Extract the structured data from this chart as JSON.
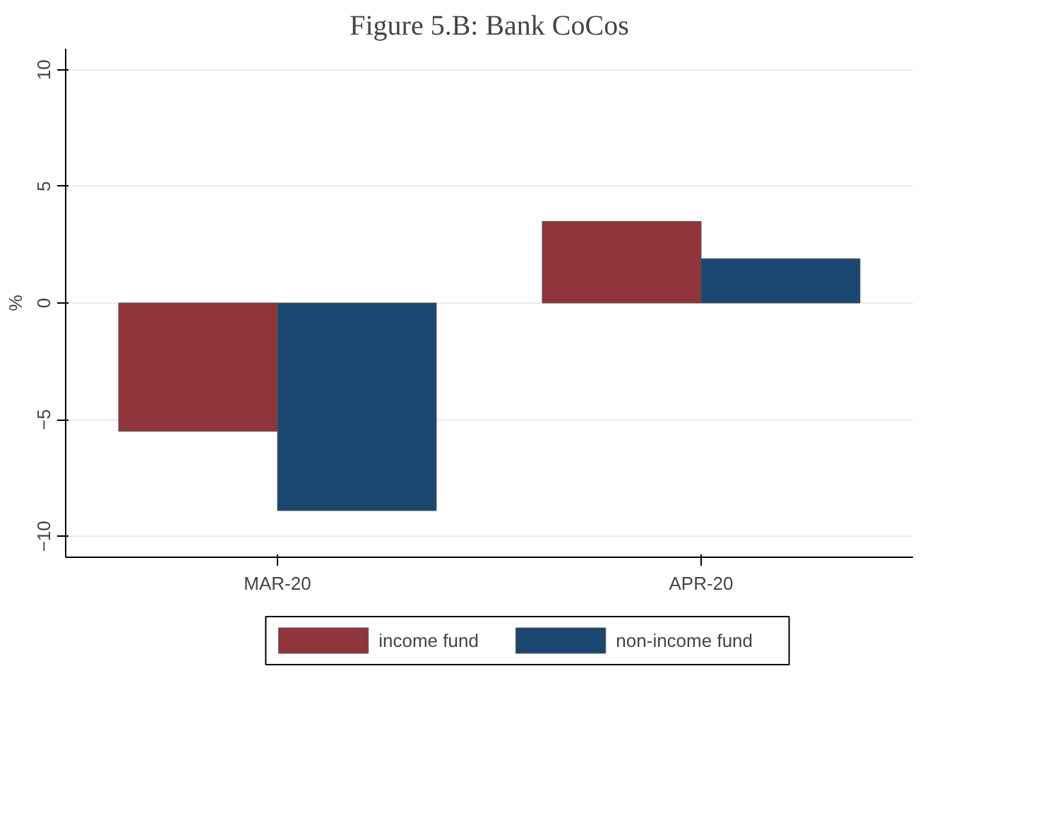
{
  "chart_data": {
    "type": "bar",
    "title": "Figure 5.B: Bank CoCos",
    "ylabel": "%",
    "categories": [
      "MAR-20",
      "APR-20"
    ],
    "series": [
      {
        "name": "income fund",
        "color": "#90353b",
        "values": [
          -5.5,
          3.5
        ]
      },
      {
        "name": "non-income fund",
        "color": "#1a476f",
        "values": [
          -8.9,
          1.9
        ]
      }
    ],
    "ylim": [
      -10.9,
      10.9
    ],
    "yticks": [
      -10,
      -5,
      0,
      5,
      10
    ],
    "grid": "y",
    "legend": "bottom"
  }
}
